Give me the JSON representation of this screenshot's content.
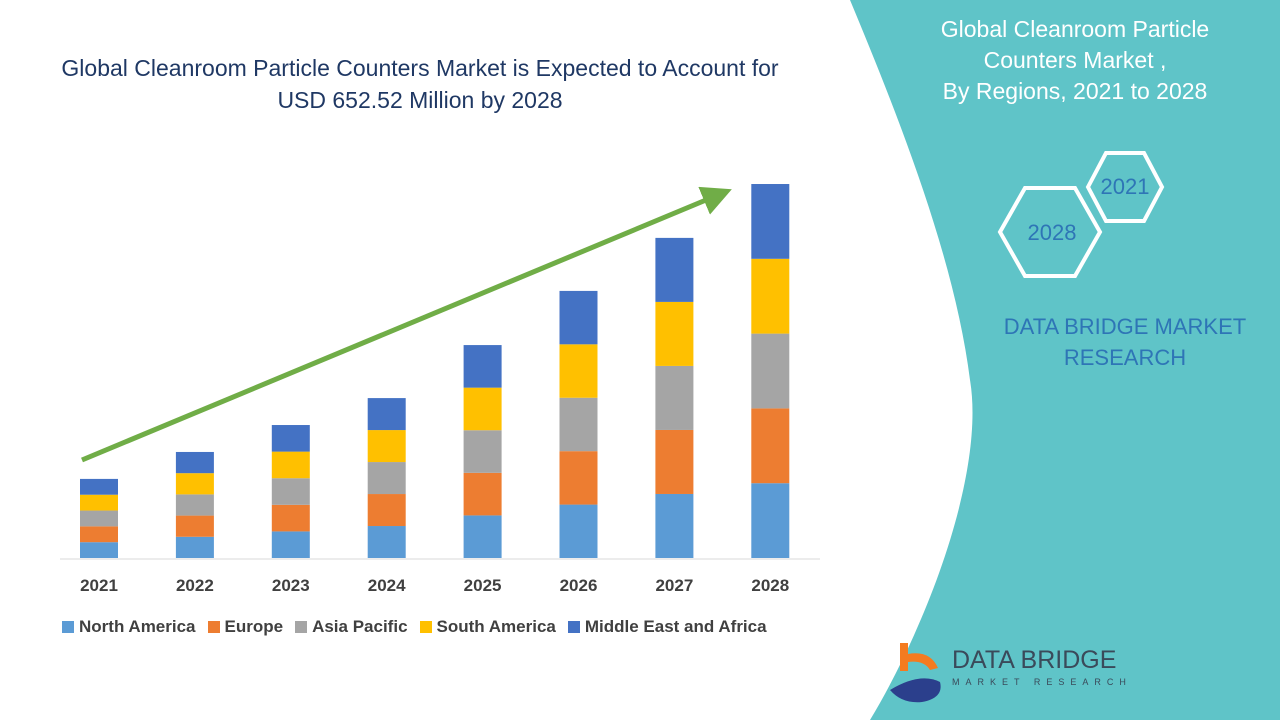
{
  "chart_data": {
    "type": "bar",
    "stacked": true,
    "title": "Global Cleanroom Particle Counters Market is Expected to Account for USD 652.52 Million by 2028",
    "categories": [
      "2021",
      "2022",
      "2023",
      "2024",
      "2025",
      "2026",
      "2027",
      "2028"
    ],
    "series": [
      {
        "name": "North America",
        "color": "#5b9bd5",
        "values": [
          27.6,
          37.0,
          46.4,
          55.8,
          74.3,
          93.2,
          111.7,
          130.5
        ]
      },
      {
        "name": "Europe",
        "color": "#ed7d31",
        "values": [
          27.6,
          37.0,
          46.4,
          55.8,
          74.3,
          93.2,
          111.7,
          130.5
        ]
      },
      {
        "name": "Asia Pacific",
        "color": "#a5a5a5",
        "values": [
          27.6,
          37.0,
          46.4,
          55.8,
          74.3,
          93.2,
          111.7,
          130.5
        ]
      },
      {
        "name": "South America",
        "color": "#ffc000",
        "values": [
          27.6,
          37.0,
          46.4,
          55.8,
          74.3,
          93.2,
          111.7,
          130.5
        ]
      },
      {
        "name": "Middle East and Africa",
        "color": "#4472c4",
        "values": [
          27.6,
          37.0,
          46.4,
          55.8,
          74.3,
          93.2,
          111.7,
          130.5
        ]
      }
    ],
    "ylim": [
      0,
      652.52
    ],
    "grid": false,
    "legend": "bottom",
    "trend_arrow_color": "#70ad47"
  },
  "panel": {
    "title_lines": [
      "Global Cleanroom Particle",
      "Counters Market ,",
      "By Regions,  2021 to 2028"
    ],
    "hex_labels": [
      "2021",
      "2028"
    ],
    "brand_lines": [
      "DATA BRIDGE MARKET",
      "RESEARCH"
    ],
    "color": "#5fc4c8"
  },
  "logo": {
    "name": "DATA BRIDGE",
    "tagline": "MARKET RESEARCH"
  }
}
